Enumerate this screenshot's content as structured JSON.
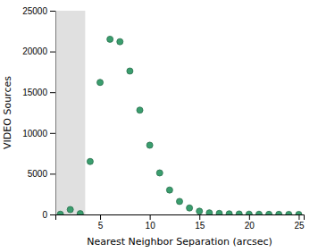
{
  "chart_data": {
    "type": "scatter",
    "x": [
      1,
      2,
      3,
      4,
      5,
      6,
      7,
      8,
      9,
      10,
      11,
      12,
      13,
      14,
      15,
      16,
      17,
      18,
      19,
      20,
      21,
      22,
      23,
      24,
      25
    ],
    "y": [
      30,
      600,
      100,
      6500,
      16200,
      21500,
      21200,
      17600,
      12800,
      8500,
      5100,
      3000,
      1600,
      800,
      400,
      200,
      130,
      80,
      60,
      40,
      30,
      20,
      15,
      10,
      5
    ],
    "color": "#3a9e6e",
    "shaded_range": [
      0.5,
      3.5
    ],
    "xlim": [
      0.5,
      25.5
    ],
    "ylim": [
      0,
      25000
    ],
    "xticks": [
      5,
      10,
      15,
      20,
      25
    ],
    "yticks": [
      0,
      5000,
      10000,
      15000,
      20000,
      25000
    ],
    "xlabel": "Nearest Neighbor Separation (arcsec)",
    "ylabel": "VIDEO Sources"
  }
}
